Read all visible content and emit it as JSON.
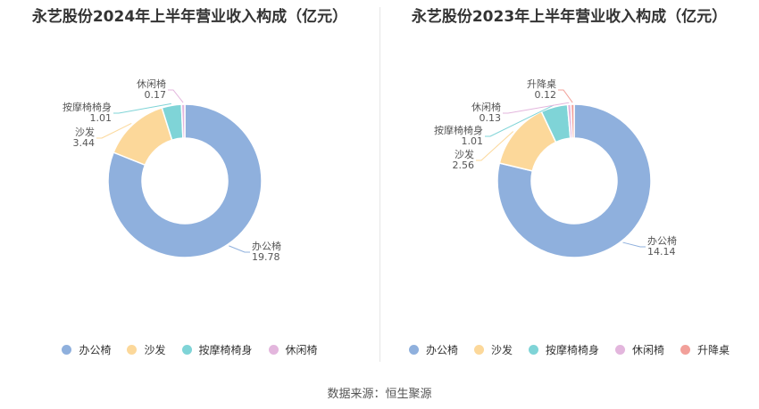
{
  "chart_data": [
    {
      "type": "pie",
      "title": "永艺股份2024年上半年营业收入构成（亿元）",
      "categories": [
        "办公椅",
        "沙发",
        "按摩椅椅身",
        "休闲椅"
      ],
      "values": [
        19.78,
        3.44,
        1.01,
        0.17
      ],
      "value_labels": [
        "19.78",
        "3.44",
        "1.01",
        "0.17"
      ],
      "colors": [
        "#8fb0dd",
        "#fcd89a",
        "#7fd4d7",
        "#e3b6dd"
      ],
      "legend_position": "bottom"
    },
    {
      "type": "pie",
      "title": "永艺股份2023年上半年营业收入构成（亿元）",
      "categories": [
        "办公椅",
        "沙发",
        "按摩椅椅身",
        "休闲椅",
        "升降桌"
      ],
      "values": [
        14.14,
        2.56,
        1.01,
        0.13,
        0.12
      ],
      "value_labels": [
        "14.14",
        "2.56",
        "1.01",
        "0.13",
        "0.12"
      ],
      "colors": [
        "#8fb0dd",
        "#fcd89a",
        "#7fd4d7",
        "#e3b6dd",
        "#f2a09a"
      ],
      "legend_position": "bottom"
    }
  ],
  "footer": {
    "source": "数据来源：恒生聚源"
  }
}
